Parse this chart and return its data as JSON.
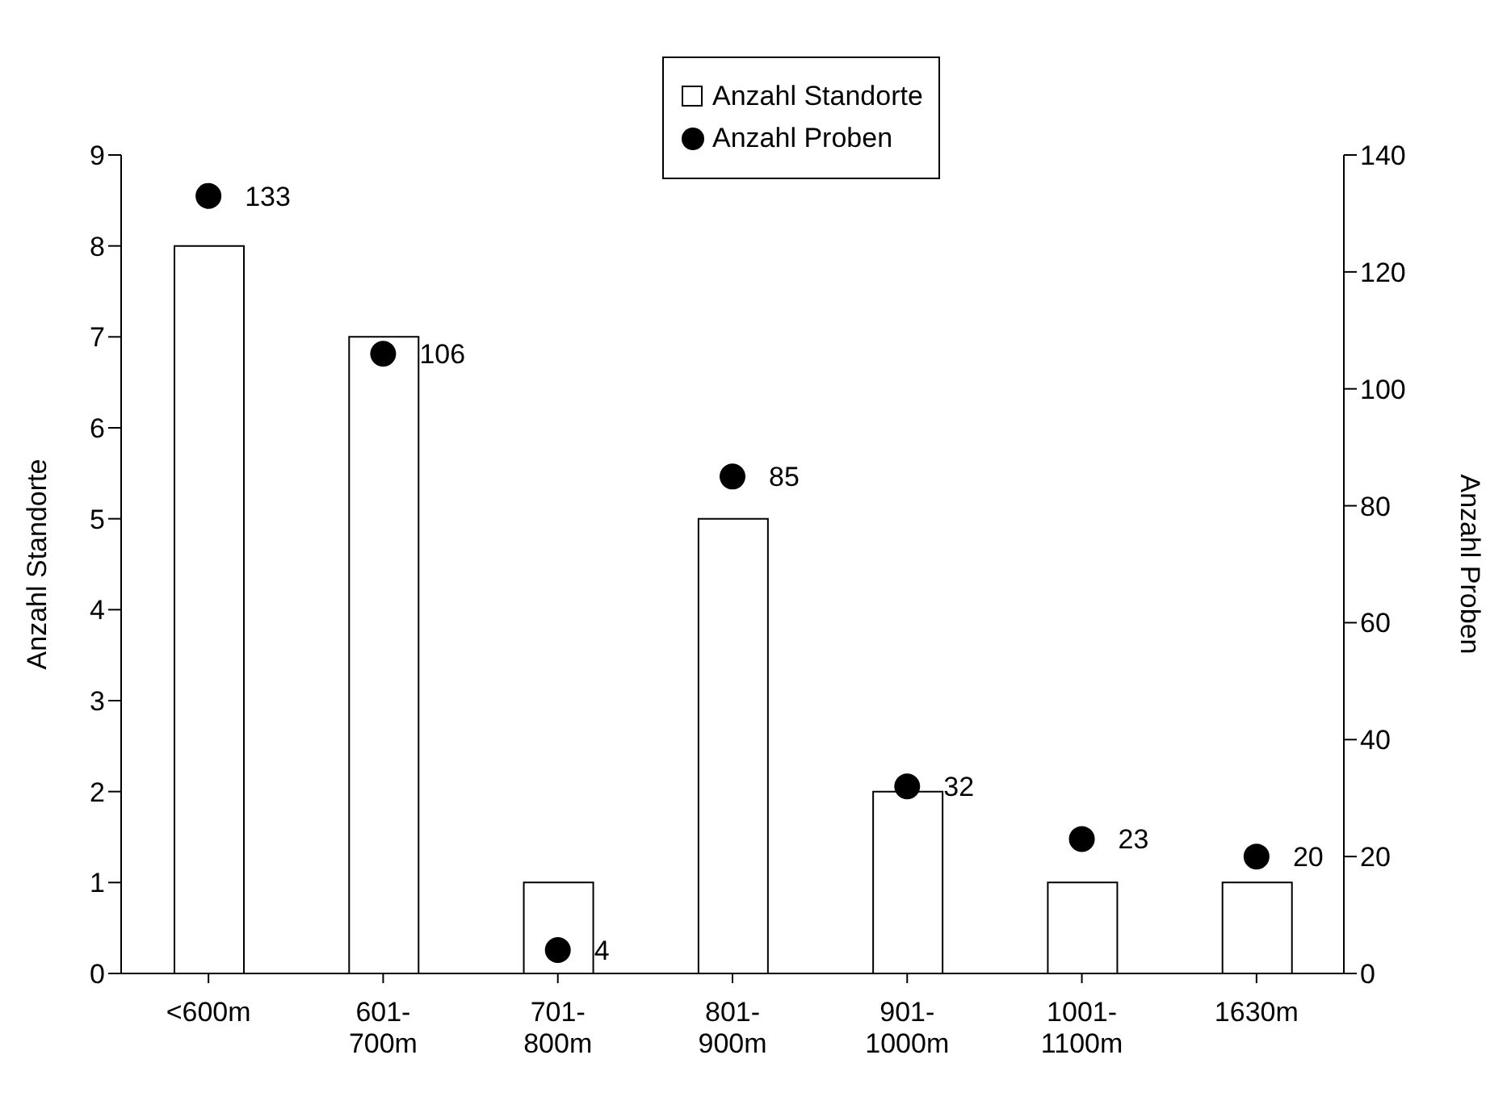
{
  "chart_data": {
    "type": "bar",
    "categories": [
      "<600m",
      "601-700m",
      "701-800m",
      "801-900m",
      "901-1000m",
      "1001-1100m",
      "1630m"
    ],
    "series": [
      {
        "name": "Anzahl Standorte",
        "color": "#ffffff",
        "values": [
          8,
          7,
          1,
          5,
          2,
          1,
          1
        ]
      },
      {
        "name": "Anzahl Proben",
        "type": "scatter",
        "axis": "y2",
        "color": "#000000",
        "values": [
          133,
          106,
          4,
          85,
          32,
          23,
          20
        ],
        "data_labels": true
      }
    ],
    "ylabel": "Anzahl Standorte",
    "y2label": "Anzahl Proben",
    "ylim": [
      0,
      9
    ],
    "yticks": [
      0,
      1,
      2,
      3,
      4,
      5,
      6,
      7,
      8,
      9
    ],
    "y2lim": [
      0,
      140
    ],
    "y2ticks": [
      0,
      20,
      40,
      60,
      80,
      100,
      120,
      140
    ],
    "legend": "top",
    "marker": "circle",
    "grid": false
  }
}
